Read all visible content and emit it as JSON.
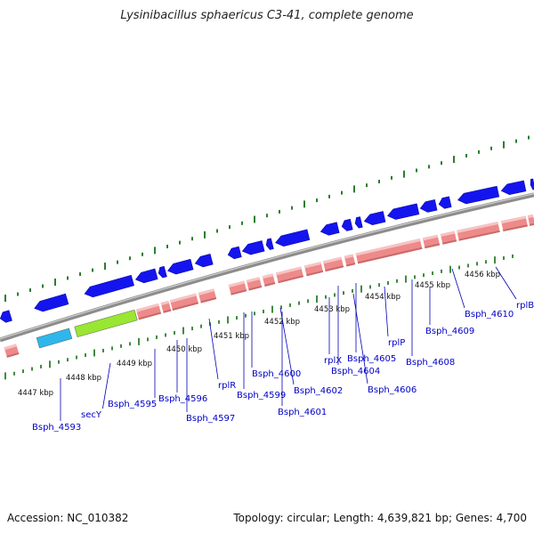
{
  "title": "Lysinibacillus sphaericus C3-41, complete genome",
  "footer": {
    "accession": "Accession: NC_010382",
    "topology": "Topology: circular; Length: 4,639,821 bp; Genes: 4,700"
  },
  "colors": {
    "backbone": "#8c8c8c",
    "cds": "#1414ee",
    "gene": "#ee8a8a",
    "rrna_like": "#99e633",
    "trna_like": "#2fb7ec",
    "ticks": "#2e7d2e",
    "labels": "#0000c8"
  },
  "scale_labels": [
    "4447 kbp",
    "4448 kbp",
    "4449 kbp",
    "4450 kbp",
    "4451 kbp",
    "4452 kbp",
    "4453 kbp",
    "4454 kbp",
    "4455 kbp",
    "4456 kbp"
  ],
  "gene_labels": [
    "Bsph_4593",
    "secY",
    "Bsph_4595",
    "Bsph_4596",
    "Bsph_4597",
    "rplR",
    "Bsph_4599",
    "Bsph_4600",
    "Bsph_4601",
    "Bsph_4602",
    "rplX",
    "Bsph_4604",
    "Bsph_4605",
    "Bsph_4606",
    "rplP",
    "Bsph_4608",
    "Bsph_4609",
    "Bsph_4610",
    "rplB"
  ]
}
